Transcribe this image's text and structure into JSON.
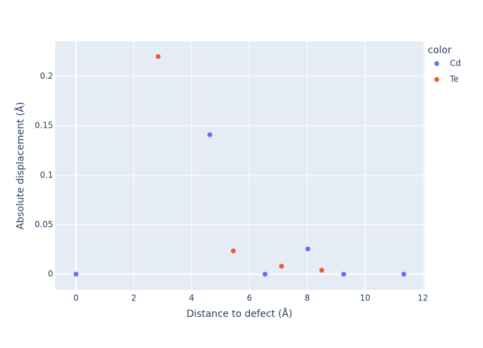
{
  "chart_data": {
    "type": "scatter",
    "x_label": "Distance to defect (Å)",
    "y_label": "Absolute displacement (Å)",
    "legend_title": "color",
    "series": [
      {
        "name": "Cd",
        "color": "#636efa",
        "x": [
          0,
          4.63,
          6.54,
          8.02,
          9.26,
          11.34
        ],
        "values": [
          0,
          0.141,
          0,
          0.0255,
          0,
          0
        ]
      },
      {
        "name": "Te",
        "color": "#ef553b",
        "x": [
          2.84,
          5.44,
          7.11,
          8.5
        ],
        "values": [
          0.22,
          0.0235,
          0.008,
          0.004
        ]
      }
    ],
    "xlim": [
      -0.72,
      12.05
    ],
    "xticks": [
      0,
      2,
      4,
      6,
      8,
      10,
      12
    ],
    "ylim": [
      -0.016,
      0.2353
    ],
    "yticks": [
      0,
      0.05,
      0.1,
      0.15,
      0.2
    ],
    "grid": true,
    "legend_position": "right"
  }
}
